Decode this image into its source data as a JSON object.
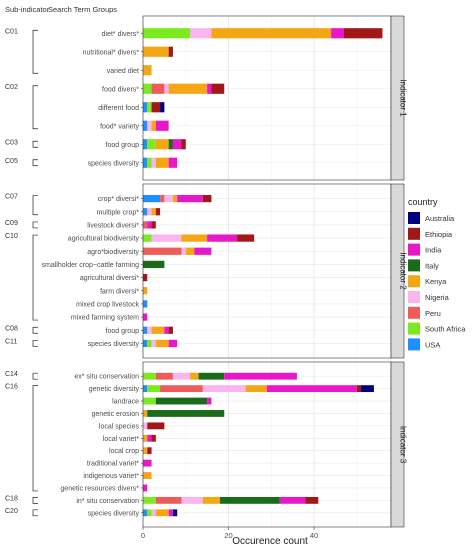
{
  "header": {
    "subindicator_label": "Sub-indicator",
    "search_label": "Search Term Groups"
  },
  "chart_data": {
    "type": "bar",
    "orientation": "horizontal",
    "stacked": true,
    "xlabel": "Occurence count",
    "xlim": [
      0,
      58
    ],
    "xticks": [
      0,
      20,
      40
    ],
    "grid": true,
    "legend": {
      "title": "country",
      "position": "right",
      "items": [
        {
          "name": "Australia",
          "color": "#000080"
        },
        {
          "name": "Ethiopia",
          "color": "#A01818"
        },
        {
          "name": "India",
          "color": "#E818C8"
        },
        {
          "name": "Italy",
          "color": "#1B6B1B"
        },
        {
          "name": "Kenya",
          "color": "#F5A615"
        },
        {
          "name": "Nigeria",
          "color": "#F9B5EF"
        },
        {
          "name": "Peru",
          "color": "#EE5B5B"
        },
        {
          "name": "South Africa",
          "color": "#7CEA1F"
        },
        {
          "name": "USA",
          "color": "#1E90FF"
        }
      ]
    },
    "panels": [
      {
        "strip": "Indicator 1",
        "rows": [
          {
            "label": "diet* divers*",
            "values": {
              "South Africa": 11,
              "Nigeria": 5,
              "Kenya": 28,
              "India": 3,
              "Ethiopia": 9
            }
          },
          {
            "label": "nutritional* divers*",
            "values": {
              "Kenya": 6,
              "Ethiopia": 1
            }
          },
          {
            "label": "varied diet",
            "values": {
              "Kenya": 2
            }
          },
          {
            "label": "food divers*",
            "values": {
              "South Africa": 2,
              "Peru": 3,
              "Nigeria": 1,
              "Kenya": 9,
              "India": 1,
              "Ethiopia": 3
            }
          },
          {
            "label": "different food",
            "values": {
              "USA": 1,
              "South Africa": 1,
              "Ethiopia": 2,
              "Australia": 1
            }
          },
          {
            "label": "food* variety",
            "values": {
              "USA": 1,
              "Nigeria": 1,
              "Kenya": 1,
              "India": 3
            }
          },
          {
            "label": "food group",
            "values": {
              "USA": 1,
              "South Africa": 2,
              "Kenya": 3,
              "Italy": 1,
              "India": 2,
              "Ethiopia": 1
            }
          },
          {
            "label": "species diversity",
            "values": {
              "USA": 1,
              "South Africa": 1,
              "Kenya": 3,
              "Nigeria": 1,
              "India": 2
            }
          }
        ]
      },
      {
        "strip": "Indicator 2",
        "rows": [
          {
            "label": "crop* diversi*",
            "values": {
              "USA": 4,
              "Peru": 1,
              "Kenya": 1,
              "Nigeria": 2,
              "India": 6,
              "Ethiopia": 2
            }
          },
          {
            "label": "multiple crop*",
            "values": {
              "USA": 1,
              "Nigeria": 1,
              "Kenya": 1,
              "Ethiopia": 1
            }
          },
          {
            "label": "livestock diversi*",
            "values": {
              "Peru": 1,
              "India": 1,
              "Ethiopia": 1
            }
          },
          {
            "label": "agricultural biodiversity",
            "values": {
              "South Africa": 2,
              "Nigeria": 7,
              "Kenya": 6,
              "India": 7,
              "Ethiopia": 4
            }
          },
          {
            "label": "agro*biodiversity",
            "values": {
              "Peru": 9,
              "Kenya": 2,
              "Nigeria": 1,
              "India": 4
            }
          },
          {
            "label": "smallholder crop−cattle farming",
            "values": {
              "Italy": 5
            }
          },
          {
            "label": "agricultural diversi*",
            "values": {
              "Ethiopia": 1
            }
          },
          {
            "label": "farm diversi*",
            "values": {
              "Kenya": 1
            }
          },
          {
            "label": "mixed crop livestock",
            "values": {
              "USA": 1
            }
          },
          {
            "label": "mixed farming system",
            "values": {
              "India": 1
            }
          },
          {
            "label": "food group",
            "values": {
              "USA": 1,
              "Nigeria": 1,
              "Kenya": 3,
              "India": 1,
              "Ethiopia": 1
            }
          },
          {
            "label": "species diversity",
            "values": {
              "USA": 1,
              "South Africa": 1,
              "Kenya": 3,
              "Nigeria": 1,
              "India": 2
            }
          }
        ]
      },
      {
        "strip": "Indicator 3",
        "rows": [
          {
            "label": "ex* situ conservation",
            "values": {
              "South Africa": 3,
              "Peru": 4,
              "Nigeria": 4,
              "Kenya": 2,
              "Italy": 6,
              "India": 17
            }
          },
          {
            "label": "genetic diversity",
            "values": {
              "USA": 1,
              "South Africa": 3,
              "Peru": 10,
              "Nigeria": 10,
              "Kenya": 5,
              "India": 21,
              "Ethiopia": 1,
              "Australia": 3
            }
          },
          {
            "label": "landrace",
            "values": {
              "South Africa": 3,
              "Italy": 12,
              "India": 1
            }
          },
          {
            "label": "genetic erosion",
            "values": {
              "Kenya": 1,
              "Italy": 18
            }
          },
          {
            "label": "local species",
            "values": {
              "Nigeria": 1,
              "Ethiopia": 4
            }
          },
          {
            "label": "local variet*",
            "values": {
              "Kenya": 1,
              "India": 1,
              "Ethiopia": 1
            }
          },
          {
            "label": "local crop",
            "values": {
              "Kenya": 1,
              "Ethiopia": 1
            }
          },
          {
            "label": "traditional variet*",
            "values": {
              "India": 2
            }
          },
          {
            "label": "indigenous variet*",
            "values": {
              "Kenya": 2
            }
          },
          {
            "label": "genetic resources divers*",
            "values": {
              "India": 1
            }
          },
          {
            "label": "in* situ conservation",
            "values": {
              "South Africa": 3,
              "Peru": 6,
              "Nigeria": 5,
              "Kenya": 4,
              "Italy": 14,
              "India": 6,
              "Ethiopia": 3
            }
          },
          {
            "label": "species diversity",
            "values": {
              "USA": 1,
              "South Africa": 1,
              "Kenya": 3,
              "Nigeria": 1,
              "India": 1,
              "Australia": 1
            }
          }
        ]
      }
    ],
    "subindicators": [
      {
        "label": "C01",
        "panel": 0,
        "from": 0,
        "to": 2
      },
      {
        "label": "C02",
        "panel": 0,
        "from": 3,
        "to": 5
      },
      {
        "label": "C03",
        "panel": 0,
        "from": 6,
        "to": 6
      },
      {
        "label": "C05",
        "panel": 0,
        "from": 7,
        "to": 7
      },
      {
        "label": "C07",
        "panel": 1,
        "from": 0,
        "to": 1
      },
      {
        "label": "C09",
        "panel": 1,
        "from": 2,
        "to": 2
      },
      {
        "label": "C10",
        "panel": 1,
        "from": 3,
        "to": 9
      },
      {
        "label": "C08",
        "panel": 1,
        "from": 10,
        "to": 10
      },
      {
        "label": "C11",
        "panel": 1,
        "from": 11,
        "to": 11
      },
      {
        "label": "C14",
        "panel": 2,
        "from": 0,
        "to": 0
      },
      {
        "label": "C16",
        "panel": 2,
        "from": 1,
        "to": 9
      },
      {
        "label": "C18",
        "panel": 2,
        "from": 10,
        "to": 10
      },
      {
        "label": "C20",
        "panel": 2,
        "from": 11,
        "to": 11
      }
    ]
  }
}
